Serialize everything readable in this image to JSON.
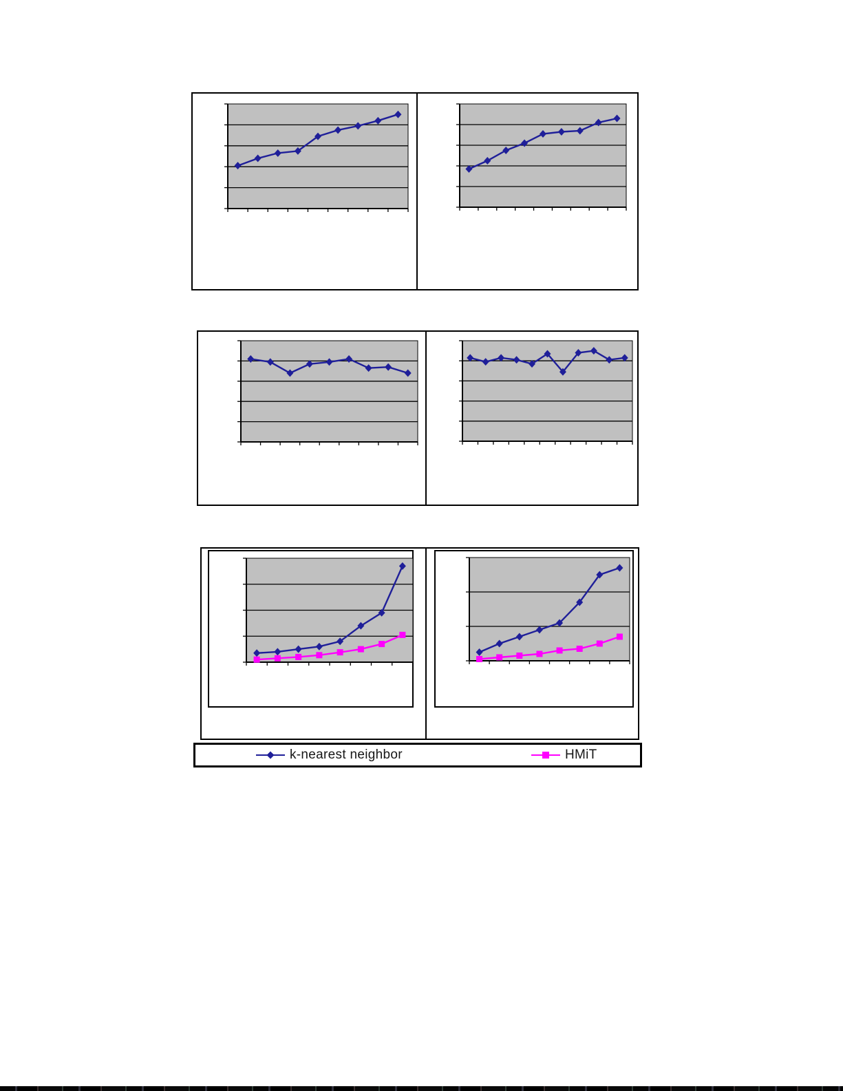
{
  "figure": {
    "description_visible_text": "",
    "panels": [
      {
        "id": "top",
        "charts": 2
      },
      {
        "id": "middle",
        "charts": 2
      },
      {
        "id": "bottom",
        "charts": 2
      }
    ]
  },
  "colors": {
    "plot_background": "#c0c0c0",
    "gridline": "#000000",
    "axis": "#000000",
    "knn_series": "#1f1f99",
    "hmit_series": "#ff00ff",
    "panel_border": "#000000",
    "legend_text": "#161616"
  },
  "legend": {
    "entries": [
      {
        "label": "k-nearest neighbor",
        "marker": "diamond",
        "color": "#1f1f99"
      },
      {
        "label": "HMiT",
        "marker": "square",
        "color": "#ff00ff"
      }
    ]
  },
  "chart_data": [
    {
      "id": "row1-left",
      "type": "line",
      "grid_intervals": 5,
      "ylim": [
        0,
        5
      ],
      "gridlines": true,
      "tick_labels_visible": false,
      "axis_titles_visible": false,
      "units": "unlabeled gridline intervals",
      "series": [
        {
          "name": "k-nearest neighbor",
          "marker": "diamond",
          "color": "#1f1f99",
          "values": [
            2.05,
            2.4,
            2.65,
            2.75,
            3.45,
            3.75,
            3.95,
            4.2,
            4.5
          ]
        }
      ]
    },
    {
      "id": "row1-right",
      "type": "line",
      "grid_intervals": 5,
      "ylim": [
        0,
        5
      ],
      "gridlines": true,
      "tick_labels_visible": false,
      "axis_titles_visible": false,
      "units": "unlabeled gridline intervals",
      "series": [
        {
          "name": "k-nearest neighbor",
          "marker": "diamond",
          "color": "#1f1f99",
          "values": [
            1.85,
            2.25,
            2.75,
            3.1,
            3.55,
            3.65,
            3.7,
            4.1,
            4.3
          ]
        }
      ]
    },
    {
      "id": "row2-left",
      "type": "line",
      "grid_intervals": 5,
      "ylim": [
        0,
        5
      ],
      "gridlines": true,
      "tick_labels_visible": false,
      "axis_titles_visible": false,
      "units": "unlabeled gridline intervals",
      "series": [
        {
          "name": "k-nearest neighbor",
          "marker": "diamond",
          "color": "#1f1f99",
          "values": [
            4.1,
            3.95,
            3.4,
            3.85,
            3.95,
            4.1,
            3.65,
            3.7,
            3.4
          ]
        }
      ]
    },
    {
      "id": "row2-right",
      "type": "line",
      "grid_intervals": 5,
      "ylim": [
        0,
        5
      ],
      "gridlines": true,
      "tick_labels_visible": false,
      "axis_titles_visible": false,
      "units": "unlabeled gridline intervals",
      "series": [
        {
          "name": "k-nearest neighbor",
          "marker": "diamond",
          "color": "#1f1f99",
          "values": [
            4.15,
            3.95,
            4.15,
            4.05,
            3.85,
            4.35,
            3.45,
            4.4,
            4.5,
            4.05,
            4.15
          ]
        }
      ]
    },
    {
      "id": "row3-left",
      "type": "line",
      "grid_intervals": 4,
      "ylim": [
        0,
        4
      ],
      "gridlines": true,
      "tick_labels_visible": false,
      "axis_titles_visible": false,
      "units": "unlabeled gridline intervals",
      "series": [
        {
          "name": "k-nearest neighbor",
          "marker": "diamond",
          "color": "#1f1f99",
          "values": [
            0.35,
            0.4,
            0.5,
            0.6,
            0.8,
            1.4,
            1.9,
            3.7
          ]
        },
        {
          "name": "HMiT",
          "marker": "square",
          "color": "#ff00ff",
          "values": [
            0.1,
            0.15,
            0.2,
            0.27,
            0.38,
            0.5,
            0.7,
            1.05
          ]
        }
      ]
    },
    {
      "id": "row3-right",
      "type": "line",
      "grid_intervals": 3,
      "ylim": [
        0,
        3
      ],
      "gridlines": true,
      "tick_labels_visible": false,
      "axis_titles_visible": false,
      "units": "unlabeled gridline intervals",
      "series": [
        {
          "name": "k-nearest neighbor",
          "marker": "diamond",
          "color": "#1f1f99",
          "values": [
            0.25,
            0.5,
            0.7,
            0.9,
            1.1,
            1.7,
            2.5,
            2.7
          ]
        },
        {
          "name": "HMiT",
          "marker": "square",
          "color": "#ff00ff",
          "values": [
            0.05,
            0.1,
            0.15,
            0.2,
            0.3,
            0.35,
            0.5,
            0.7
          ]
        }
      ]
    }
  ]
}
